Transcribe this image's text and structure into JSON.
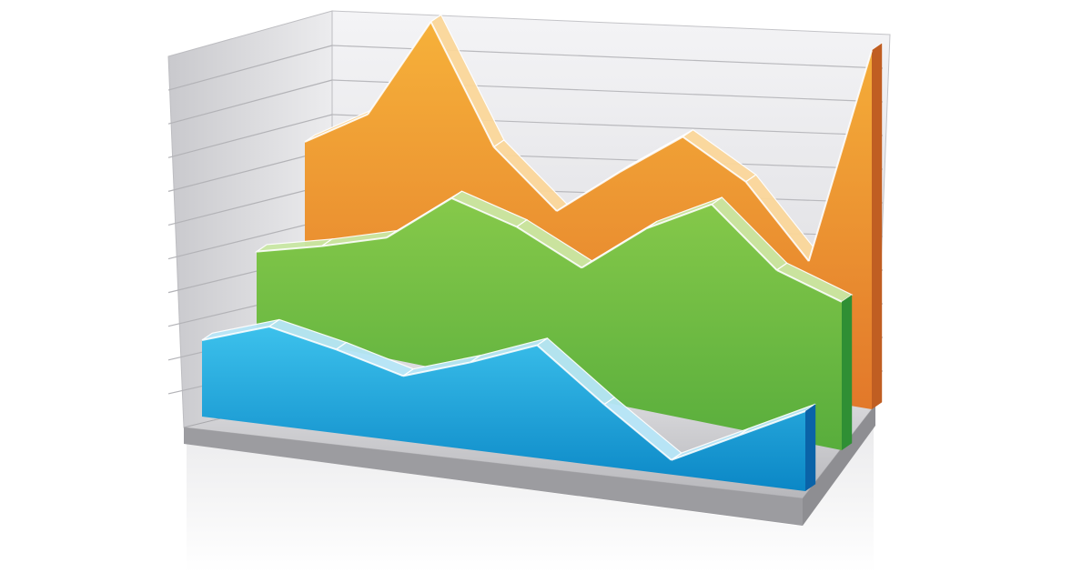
{
  "chart_data": {
    "type": "area",
    "title": "",
    "xlabel": "",
    "ylabel": "",
    "three_d": true,
    "grid": true,
    "legend": "none",
    "x": [
      0,
      1,
      2,
      3,
      4,
      5,
      6,
      7,
      8,
      9
    ],
    "ylim": [
      0,
      10
    ],
    "series": [
      {
        "color": "#f0a133",
        "values": [
          4.5,
          5.5,
          8.2,
          5.2,
          3.8,
          5.1,
          6.3,
          5.4,
          3.6,
          9.4
        ]
      },
      {
        "color": "#6cbd45",
        "values": [
          2.6,
          3.2,
          3.9,
          5.6,
          5.1,
          4.2,
          5.9,
          7.1,
          5.4,
          4.8
        ]
      },
      {
        "color": "#19a6d9",
        "values": [
          2.1,
          2.7,
          2.3,
          1.8,
          2.4,
          3.1,
          1.7,
          0.4,
          1.3,
          2.2
        ]
      }
    ]
  }
}
